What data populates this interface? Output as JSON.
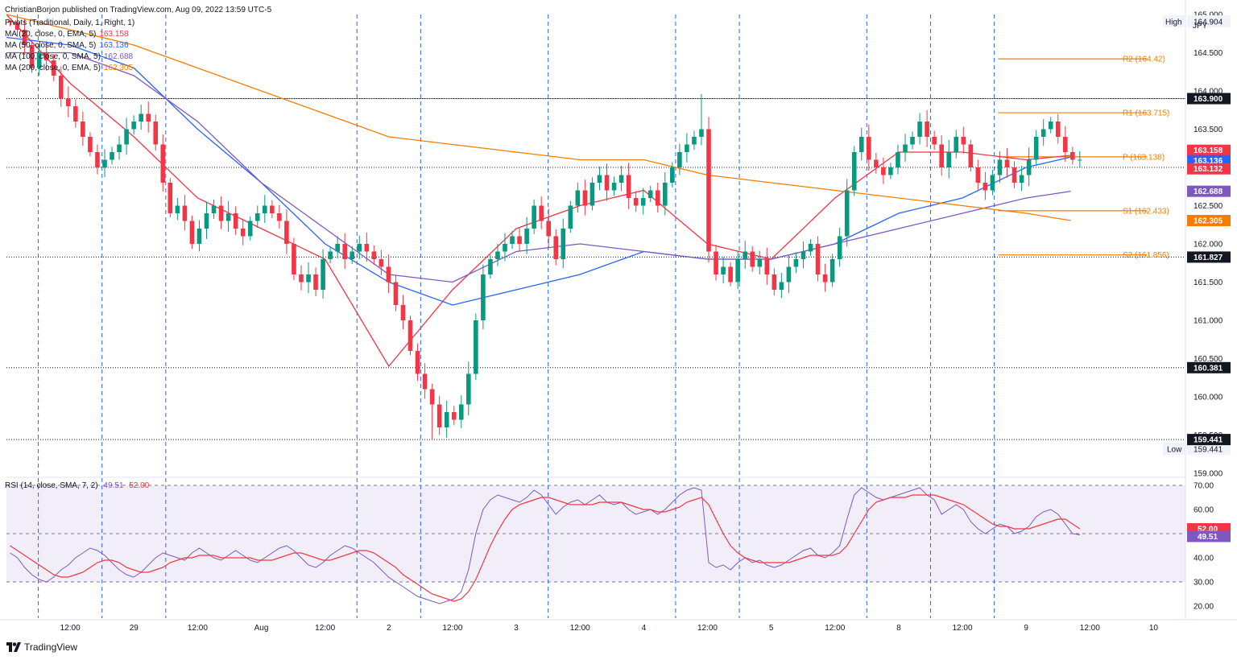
{
  "header": {
    "published": "ChristianBorjon published on TradingView.com, Aug 09, 2022 13:59 UTC-5",
    "currency": "JPY",
    "brand": "TradingView"
  },
  "legend": [
    {
      "label": "Pivots (Traditional, Daily, 1, Right, 1)",
      "value": "",
      "color": "#131722"
    },
    {
      "label": "MA (20, close, 0, EMA, 5)",
      "value": "163.158",
      "color": "#f23645"
    },
    {
      "label": "MA (50, close, 0, SMA, 5)",
      "value": "163.136",
      "color": "#2962ff"
    },
    {
      "label": "MA (100, close, 0, SMA, 5)",
      "value": "162.688",
      "color": "#7e57c2"
    },
    {
      "label": "MA (200, close, 0, EMA, 5)",
      "value": "162.305",
      "color": "#f57c00"
    }
  ],
  "rsi_legend": {
    "label": "RSI (14, close, SMA, 7, 2)",
    "rsi": "49.51",
    "sma": "52.00"
  },
  "chart_data": {
    "type": "candlestick",
    "symbol_currency": "JPY",
    "timeframe": "hourly",
    "price_range": [
      159.0,
      165.0
    ],
    "price_ticks": [
      165.0,
      164.5,
      164.0,
      163.5,
      163.0,
      162.5,
      162.0,
      161.5,
      161.0,
      160.5,
      160.0,
      159.5,
      159.0
    ],
    "price_tick_labels": [
      "165.000",
      "164.500",
      "164.000",
      "163.500",
      "163.000",
      "162.500",
      "162.000",
      "161.500",
      "161.000",
      "160.500",
      "160.000",
      "159.500",
      "159.000"
    ],
    "x_ticks": [
      {
        "label": "12:00",
        "t": 0.5
      },
      {
        "label": "29",
        "t": 1.0
      },
      {
        "label": "12:00",
        "t": 1.5
      },
      {
        "label": "Aug",
        "t": 2.0
      },
      {
        "label": "12:00",
        "t": 2.5
      },
      {
        "label": "2",
        "t": 3.0
      },
      {
        "label": "12:00",
        "t": 3.5
      },
      {
        "label": "3",
        "t": 4.0
      },
      {
        "label": "12:00",
        "t": 4.5
      },
      {
        "label": "4",
        "t": 5.0
      },
      {
        "label": "12:00",
        "t": 5.5
      },
      {
        "label": "5",
        "t": 6.0
      },
      {
        "label": "12:00",
        "t": 6.5
      },
      {
        "label": "8",
        "t": 7.0
      },
      {
        "label": "12:00",
        "t": 7.5
      },
      {
        "label": "9",
        "t": 8.0
      },
      {
        "label": "12:00",
        "t": 8.5
      },
      {
        "label": "10",
        "t": 9.0
      }
    ],
    "session_lines_t": [
      0.25,
      0.75,
      1.25,
      2.75,
      3.25,
      4.25,
      5.25,
      5.75,
      6.75,
      7.25,
      7.75
    ],
    "candle_series": [
      [
        164.9,
        164.8,
        164.6,
        164.3,
        164.5,
        164.4,
        164.2,
        163.9,
        163.8,
        163.6,
        163.4,
        163.2,
        163.0,
        163.1,
        163.2,
        163.3,
        163.5,
        163.6,
        163.7,
        163.6,
        163.3,
        162.8,
        162.4,
        162.5,
        162.3,
        162.0,
        162.2,
        162.4,
        162.5,
        162.3,
        162.4,
        162.2,
        162.1,
        162.3,
        162.4,
        162.5,
        162.4,
        162.3,
        162.0,
        161.6,
        161.5,
        161.6,
        161.4,
        161.8,
        161.9,
        162.0,
        161.8,
        161.9,
        162.0,
        161.9,
        161.8,
        161.7,
        161.5,
        161.2,
        161.0,
        160.6,
        160.3,
        160.1,
        159.9,
        159.6,
        159.8,
        159.7,
        159.9,
        160.3,
        161.0,
        161.6,
        161.8,
        161.9,
        162.0,
        162.1,
        162.0,
        162.2,
        162.5,
        162.3,
        162.1,
        161.8,
        162.2,
        162.5,
        162.7,
        162.5,
        162.8,
        162.9,
        162.7,
        162.8,
        162.9,
        162.6,
        162.5,
        162.6,
        162.7,
        162.5,
        162.8,
        163.0,
        163.2,
        163.3,
        163.4,
        163.5,
        161.9,
        161.6,
        161.7,
        161.5,
        161.8,
        161.9,
        161.7,
        161.8,
        161.6,
        161.4,
        161.5,
        161.7,
        161.8,
        161.9,
        162.0,
        161.6,
        161.5,
        161.8,
        162.1,
        162.7,
        163.2,
        163.4,
        163.1,
        163.0,
        162.9,
        163.0,
        163.2,
        163.3,
        163.4,
        163.6,
        163.4,
        163.3,
        163.0,
        163.2,
        163.4,
        163.3,
        163.0,
        162.8,
        162.7,
        162.9,
        163.1,
        163.0,
        162.8,
        162.9,
        163.1,
        163.4,
        163.5,
        163.6,
        163.4,
        163.2,
        163.1,
        163.1
      ],
      [],
      []
    ],
    "candles_note": "OHLC are synthesized by the script from the close path (candle_series[0]) and wick factors; closes in JPY per USD.",
    "high": {
      "label": "High",
      "value": "164.904"
    },
    "low": {
      "label": "Low",
      "value": "159.441"
    },
    "horizontal_levels": [
      {
        "label": "163.900",
        "value": 163.9
      },
      {
        "label": "163.000",
        "value": 163.0
      },
      {
        "label": "161.827",
        "value": 161.827
      },
      {
        "label": "160.381",
        "value": 160.381
      },
      {
        "label": "159.441",
        "value": 159.441
      }
    ],
    "pivots": [
      {
        "label": "R2 (164.42)",
        "value": 164.42
      },
      {
        "label": "R1 (163.715)",
        "value": 163.715
      },
      {
        "label": "P (163.138)",
        "value": 163.138
      },
      {
        "label": "S1 (162.433)",
        "value": 162.433
      },
      {
        "label": "S2 (161.856)",
        "value": 161.856
      }
    ],
    "price_badges": [
      {
        "label": "163.900",
        "value": 163.9,
        "color": "#131722"
      },
      {
        "label": "163.158",
        "value": 163.158,
        "color": "#f23645"
      },
      {
        "label": "163.136",
        "value": 163.136,
        "color": "#2962ff"
      },
      {
        "label": "163.132",
        "value": 163.132,
        "color": "#f23645"
      },
      {
        "label": "162.688",
        "value": 162.688,
        "color": "#7e57c2"
      },
      {
        "label": "162.305",
        "value": 162.305,
        "color": "#f57c00"
      },
      {
        "label": "161.827",
        "value": 161.827,
        "color": "#131722"
      },
      {
        "label": "160.381",
        "value": 160.381,
        "color": "#131722"
      },
      {
        "label": "159.441",
        "value": 159.441,
        "color": "#131722"
      }
    ],
    "moving_averages": [
      {
        "name": "MA 20 EMA",
        "color": "#f23645",
        "path_t": [
          0,
          0.5,
          1,
          1.5,
          2,
          2.5,
          3,
          3.5,
          4,
          4.5,
          5,
          5.5,
          6,
          6.5,
          7,
          7.5,
          8,
          8.35
        ],
        "values": [
          165.0,
          164.1,
          163.4,
          162.6,
          162.2,
          161.8,
          160.4,
          161.4,
          162.2,
          162.5,
          162.7,
          162.0,
          161.8,
          162.6,
          163.2,
          163.2,
          163.1,
          163.158
        ]
      },
      {
        "name": "MA 50 SMA",
        "color": "#2962ff",
        "path_t": [
          0,
          0.5,
          1,
          1.5,
          2,
          2.5,
          3,
          3.5,
          4,
          4.5,
          5,
          5.5,
          6,
          6.5,
          7,
          7.5,
          8,
          8.35
        ],
        "values": [
          164.7,
          164.6,
          164.3,
          163.5,
          162.8,
          162.0,
          161.5,
          161.2,
          161.4,
          161.6,
          161.9,
          161.8,
          161.8,
          162.0,
          162.4,
          162.6,
          163.0,
          163.136
        ]
      },
      {
        "name": "MA 100 SMA",
        "color": "#7e57c2",
        "path_t": [
          0,
          0.5,
          1,
          1.5,
          2,
          2.5,
          3,
          3.5,
          4,
          4.5,
          5,
          5.5,
          6,
          6.5,
          7,
          7.5,
          8,
          8.35
        ],
        "values": [
          164.5,
          164.5,
          164.2,
          163.6,
          162.8,
          162.2,
          161.6,
          161.5,
          161.9,
          162.0,
          161.9,
          161.8,
          161.8,
          162.0,
          162.2,
          162.4,
          162.6,
          162.688
        ]
      },
      {
        "name": "MA 200 EMA",
        "color": "#f57c00",
        "path_t": [
          0,
          0.5,
          1,
          1.5,
          2,
          2.5,
          3,
          3.5,
          4,
          4.5,
          5,
          5.5,
          6,
          6.5,
          7,
          7.5,
          8,
          8.35
        ],
        "values": [
          165.0,
          164.8,
          164.6,
          164.3,
          164.0,
          163.7,
          163.4,
          163.3,
          163.2,
          163.1,
          163.1,
          162.9,
          162.8,
          162.7,
          162.6,
          162.5,
          162.4,
          162.305
        ]
      }
    ],
    "rsi": {
      "range": [
        15,
        72
      ],
      "ticks": [
        70,
        60,
        50,
        40,
        30,
        20
      ],
      "tick_labels": [
        "70.00",
        "60.00",
        "50.00",
        "40.00",
        "30.00",
        "20.00"
      ],
      "overbought": 70,
      "oversold": 30,
      "midline": 50,
      "rsi_value_label": "49.51",
      "sma_value_label": "52.00",
      "rsi_values": [
        42,
        40,
        36,
        33,
        31,
        30,
        32,
        35,
        37,
        40,
        42,
        44,
        43,
        41,
        38,
        35,
        33,
        32,
        34,
        37,
        40,
        42,
        41,
        40,
        39,
        42,
        44,
        42,
        40,
        39,
        41,
        43,
        41,
        39,
        38,
        40,
        42,
        44,
        45,
        43,
        40,
        37,
        36,
        38,
        41,
        43,
        45,
        44,
        42,
        40,
        38,
        35,
        32,
        30,
        28,
        26,
        24,
        23,
        22,
        21,
        22,
        23,
        26,
        35,
        50,
        60,
        64,
        66,
        65,
        64,
        63,
        65,
        68,
        66,
        62,
        58,
        61,
        63,
        64,
        62,
        64,
        66,
        63,
        62,
        63,
        60,
        58,
        59,
        60,
        58,
        60,
        63,
        66,
        68,
        69,
        68,
        38,
        36,
        37,
        35,
        38,
        40,
        38,
        39,
        37,
        36,
        37,
        39,
        41,
        43,
        44,
        41,
        40,
        42,
        45,
        56,
        66,
        69,
        67,
        65,
        64,
        65,
        66,
        67,
        68,
        69,
        66,
        64,
        58,
        60,
        62,
        60,
        55,
        52,
        50,
        52,
        54,
        53,
        50,
        51,
        53,
        57,
        59,
        60,
        58,
        54,
        50,
        49.51
      ],
      "sma_values": [
        45,
        43,
        41,
        39,
        37,
        35,
        33,
        32,
        32,
        33,
        34,
        36,
        38,
        39,
        39,
        38,
        36,
        35,
        34,
        34,
        35,
        36,
        38,
        39,
        40,
        40,
        41,
        41,
        41,
        40,
        40,
        40,
        40,
        40,
        39,
        39,
        39,
        40,
        41,
        42,
        42,
        41,
        40,
        39,
        39,
        40,
        41,
        42,
        43,
        43,
        42,
        40,
        38,
        36,
        33,
        31,
        29,
        27,
        25,
        24,
        23,
        22,
        23,
        26,
        31,
        38,
        45,
        51,
        56,
        60,
        62,
        63,
        64,
        65,
        65,
        64,
        63,
        62,
        62,
        62,
        62,
        63,
        63,
        63,
        63,
        62,
        61,
        60,
        60,
        59,
        59,
        60,
        61,
        63,
        64,
        65,
        62,
        56,
        50,
        45,
        42,
        40,
        39,
        38,
        38,
        38,
        38,
        38,
        39,
        40,
        41,
        41,
        41,
        41,
        42,
        45,
        50,
        55,
        60,
        63,
        64,
        65,
        65,
        65,
        66,
        66,
        66,
        66,
        65,
        64,
        63,
        62,
        60,
        58,
        56,
        54,
        53,
        53,
        52,
        52,
        52,
        53,
        54,
        55,
        56,
        56,
        54,
        52
      ]
    }
  }
}
